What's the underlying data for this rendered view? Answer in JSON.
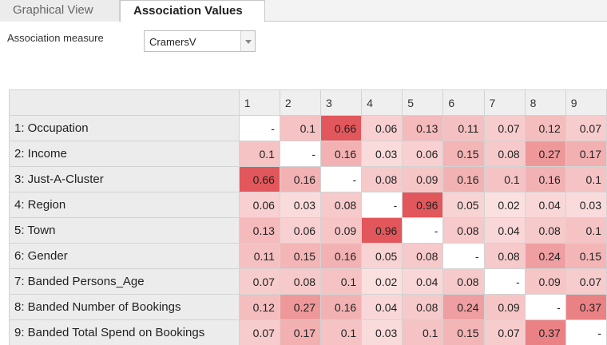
{
  "tabs": [
    {
      "label": "Graphical View",
      "active": false
    },
    {
      "label": "Association Values",
      "active": true
    }
  ],
  "measure": {
    "label": "Association measure",
    "selected": "CramersV"
  },
  "grid": {
    "columns": [
      "1",
      "2",
      "3",
      "4",
      "5",
      "6",
      "7",
      "8",
      "9"
    ],
    "rows": [
      {
        "label": "1: Occupation",
        "values": [
          "-",
          "0.1",
          "0.66",
          "0.06",
          "0.13",
          "0.11",
          "0.07",
          "0.12",
          "0.07"
        ]
      },
      {
        "label": "2: Income",
        "values": [
          "0.1",
          "-",
          "0.16",
          "0.03",
          "0.06",
          "0.15",
          "0.08",
          "0.27",
          "0.17"
        ]
      },
      {
        "label": "3: Just-A-Cluster",
        "values": [
          "0.66",
          "0.16",
          "-",
          "0.08",
          "0.09",
          "0.16",
          "0.1",
          "0.16",
          "0.1"
        ]
      },
      {
        "label": "4: Region",
        "values": [
          "0.06",
          "0.03",
          "0.08",
          "-",
          "0.96",
          "0.05",
          "0.02",
          "0.04",
          "0.03"
        ]
      },
      {
        "label": "5: Town",
        "values": [
          "0.13",
          "0.06",
          "0.09",
          "0.96",
          "-",
          "0.08",
          "0.04",
          "0.08",
          "0.1"
        ]
      },
      {
        "label": "6: Gender",
        "values": [
          "0.11",
          "0.15",
          "0.16",
          "0.05",
          "0.08",
          "-",
          "0.08",
          "0.24",
          "0.15"
        ]
      },
      {
        "label": "7: Banded Persons_Age",
        "values": [
          "0.07",
          "0.08",
          "0.1",
          "0.02",
          "0.04",
          "0.08",
          "-",
          "0.09",
          "0.07"
        ]
      },
      {
        "label": "8: Banded Number of Bookings",
        "values": [
          "0.12",
          "0.27",
          "0.16",
          "0.04",
          "0.08",
          "0.24",
          "0.09",
          "-",
          "0.37"
        ]
      },
      {
        "label": "9: Banded Total Spend on Bookings",
        "values": [
          "0.07",
          "0.17",
          "0.1",
          "0.03",
          "0.1",
          "0.15",
          "0.07",
          "0.37",
          "-"
        ]
      }
    ]
  },
  "colors": {
    "heat_low": "#fdeeee",
    "heat_high": "#e2575b",
    "empty": "#ffffff"
  }
}
